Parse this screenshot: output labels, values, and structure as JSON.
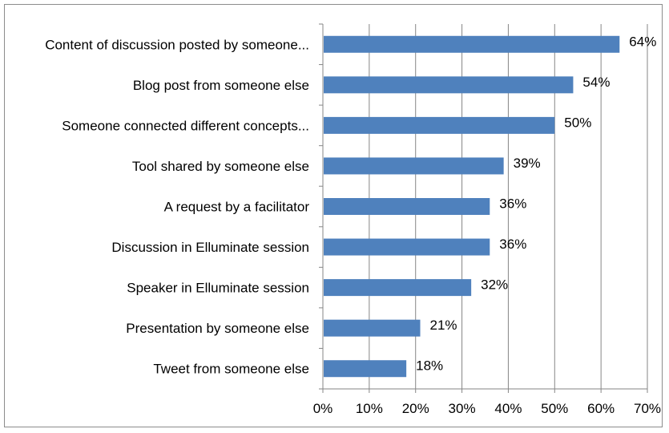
{
  "chart_data": {
    "type": "bar",
    "orientation": "horizontal",
    "categories": [
      "Content of discussion posted by someone...",
      "Blog post from someone else",
      "Someone connected different concepts...",
      "Tool shared by someone else",
      "A request by a facilitator",
      "Discussion in Elluminate session",
      "Speaker in Elluminate session",
      "Presentation by someone else",
      "Tweet from someone else"
    ],
    "values": [
      64,
      54,
      50,
      39,
      36,
      36,
      32,
      21,
      18
    ],
    "value_labels": [
      "64%",
      "54%",
      "50%",
      "39%",
      "36%",
      "36%",
      "32%",
      "21%",
      "18%"
    ],
    "x_ticks": [
      "0%",
      "10%",
      "20%",
      "30%",
      "40%",
      "50%",
      "60%",
      "70%"
    ],
    "xlim": [
      0,
      70
    ],
    "grid": "vertical",
    "legend": "none",
    "bar_color": "#4f81bd",
    "grid_color": "#868686"
  }
}
